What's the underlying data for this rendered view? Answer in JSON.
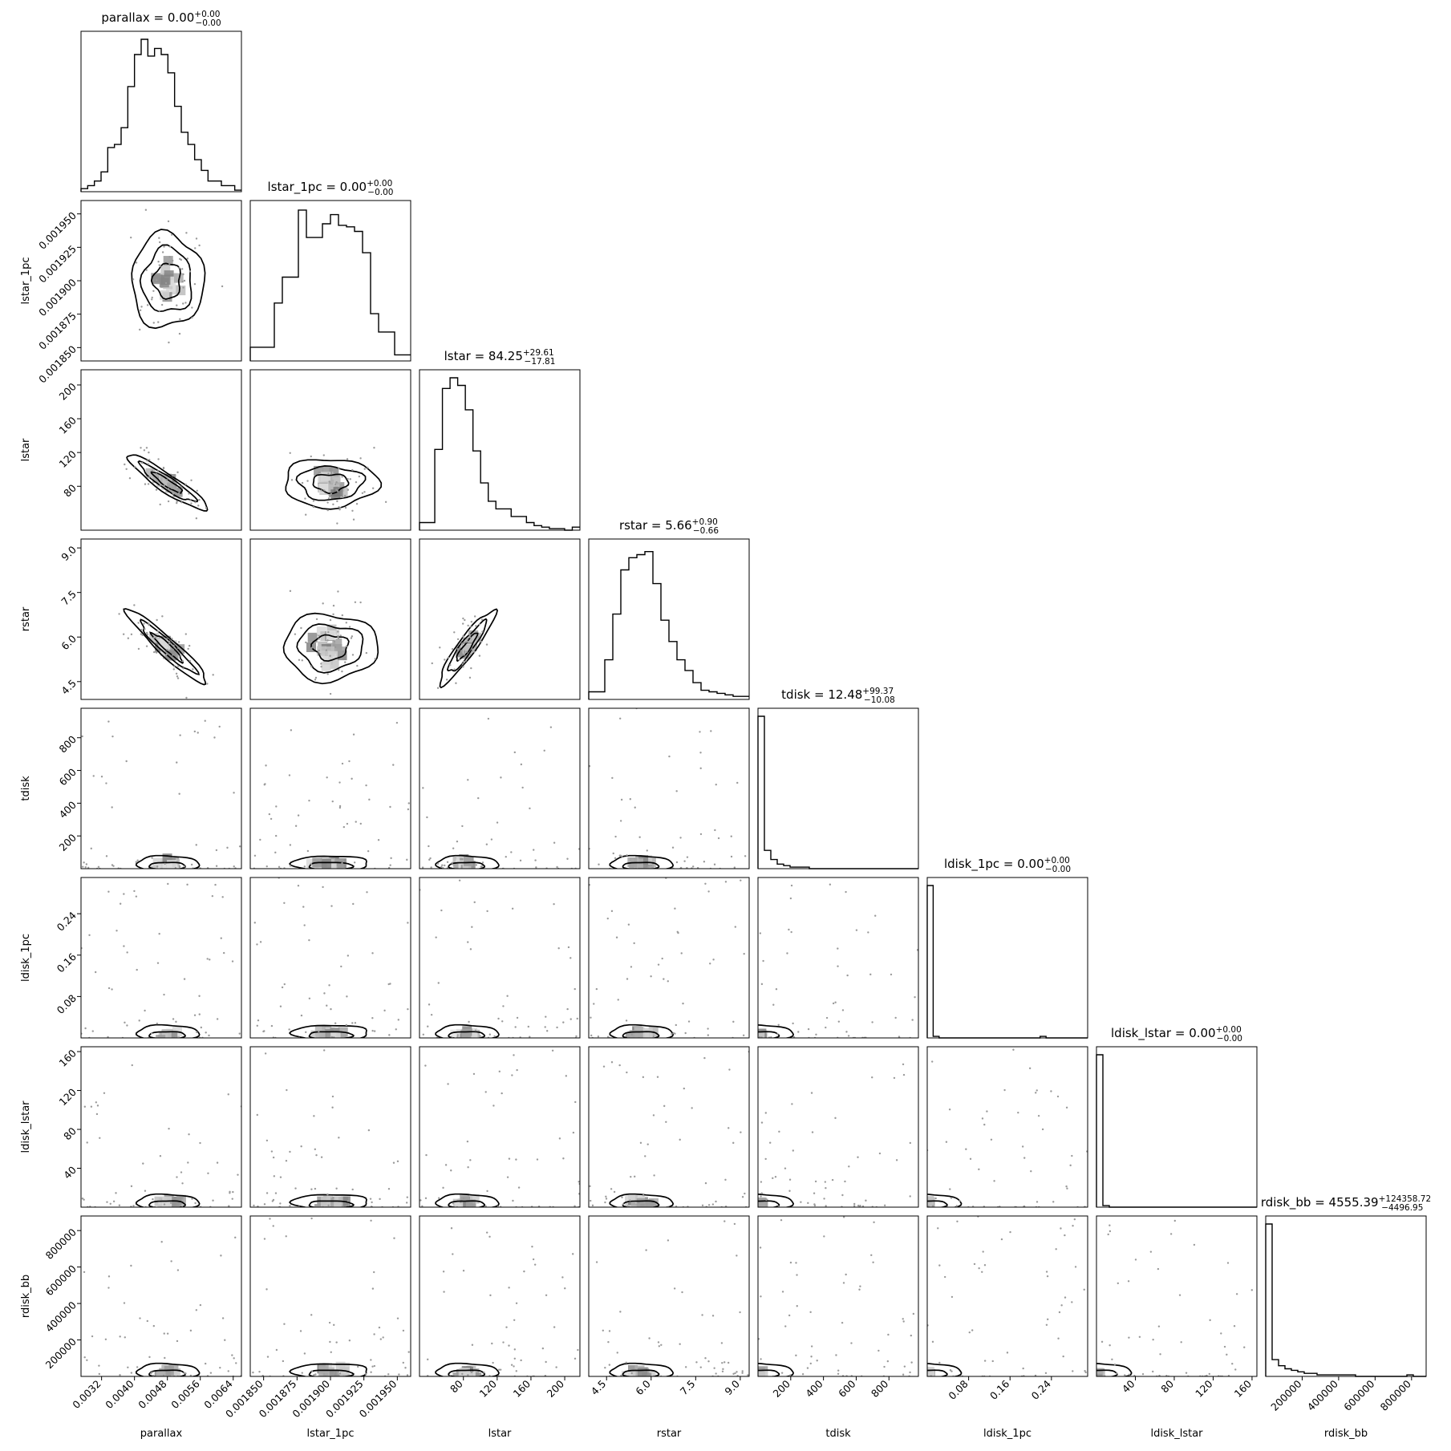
{
  "chart_data": {
    "type": "corner",
    "parameters": [
      "parallax",
      "lstar_1pc",
      "lstar",
      "rstar",
      "tdisk",
      "ldisk_1pc",
      "ldisk_lstar",
      "rdisk_bb"
    ],
    "axis_labels": [
      "parallax",
      "lstar_1pc",
      "lstar",
      "rstar",
      "tdisk",
      "ldisk_1pc",
      "ldisk_lstar",
      "rdisk_bb"
    ],
    "ranges": [
      [
        0.0027,
        0.0066
      ],
      [
        0.00184,
        0.00196
      ],
      [
        28,
        218
      ],
      [
        3.9,
        9.3
      ],
      [
        0,
        980
      ],
      [
        0,
        0.31
      ],
      [
        0,
        165
      ],
      [
        0,
        880000
      ]
    ],
    "ticks": [
      {
        "values": [
          0.0032,
          0.004,
          0.0048,
          0.0056,
          0.0064
        ],
        "labels": [
          "0.0032",
          "0.0040",
          "0.0048",
          "0.0056",
          "0.0064"
        ]
      },
      {
        "values": [
          0.00185,
          0.001875,
          0.0019,
          0.001925,
          0.00195
        ],
        "labels": [
          "0.001850",
          "0.001875",
          "0.001900",
          "0.001925",
          "0.001950"
        ]
      },
      {
        "values": [
          80,
          120,
          160,
          200
        ],
        "labels": [
          "80",
          "120",
          "160",
          "200"
        ]
      },
      {
        "values": [
          4.5,
          6.0,
          7.5,
          9.0
        ],
        "labels": [
          "4.5",
          "6.0",
          "7.5",
          "9.0"
        ]
      },
      {
        "values": [
          200,
          400,
          600,
          800
        ],
        "labels": [
          "200",
          "400",
          "600",
          "800"
        ]
      },
      {
        "values": [
          0.08,
          0.16,
          0.24
        ],
        "labels": [
          "0.08",
          "0.16",
          "0.24"
        ]
      },
      {
        "values": [
          40,
          80,
          120,
          160
        ],
        "labels": [
          "40",
          "80",
          "120",
          "160"
        ]
      },
      {
        "values": [
          200000,
          400000,
          600000,
          800000
        ],
        "labels": [
          "200000",
          "400000",
          "600000",
          "800000"
        ]
      }
    ],
    "titles": [
      {
        "name": "parallax",
        "median": "0.00",
        "plus": "+0.00",
        "minus": "−0.00"
      },
      {
        "name": "lstar_1pc",
        "median": "0.00",
        "plus": "+0.00",
        "minus": "−0.00"
      },
      {
        "name": "lstar",
        "median": "84.25",
        "plus": "+29.61",
        "minus": "−17.81"
      },
      {
        "name": "rstar",
        "median": "5.66",
        "plus": "+0.90",
        "minus": "−0.66"
      },
      {
        "name": "tdisk",
        "median": "12.48",
        "plus": "+99.37",
        "minus": "−10.08"
      },
      {
        "name": "ldisk_1pc",
        "median": "0.00",
        "plus": "+0.00",
        "minus": "−0.00"
      },
      {
        "name": "ldisk_lstar",
        "median": "0.00",
        "plus": "+0.00",
        "minus": "−0.00"
      },
      {
        "name": "rdisk_bb",
        "median": "4555.39",
        "plus": "+124358.72",
        "minus": "−4496.95"
      }
    ],
    "histograms": [
      [
        0.02,
        0.04,
        0.07,
        0.13,
        0.29,
        0.31,
        0.42,
        0.69,
        0.9,
        1.0,
        0.89,
        0.94,
        0.9,
        0.78,
        0.56,
        0.39,
        0.31,
        0.21,
        0.14,
        0.07,
        0.07,
        0.04,
        0.04,
        0.01
      ],
      [
        0.09,
        0.09,
        0.09,
        0.38,
        0.55,
        0.55,
        0.99,
        0.81,
        0.81,
        0.9,
        0.96,
        0.89,
        0.88,
        0.85,
        0.71,
        0.31,
        0.19,
        0.19,
        0.04,
        0.04
      ],
      [
        0.05,
        0.05,
        0.53,
        0.93,
        1.0,
        0.95,
        0.79,
        0.52,
        0.31,
        0.19,
        0.14,
        0.14,
        0.09,
        0.09,
        0.05,
        0.03,
        0.02,
        0.01,
        0.01,
        0.0,
        0.02
      ],
      [
        0.05,
        0.05,
        0.26,
        0.56,
        0.85,
        0.93,
        0.95,
        0.97,
        0.76,
        0.52,
        0.38,
        0.26,
        0.19,
        0.11,
        0.06,
        0.05,
        0.04,
        0.03,
        0.02,
        0.02
      ],
      [
        1.0,
        0.12,
        0.06,
        0.03,
        0.02,
        0.01,
        0.01,
        0.01,
        0.0,
        0.0,
        0.0,
        0.0,
        0.0,
        0.0,
        0.0,
        0.0,
        0.0,
        0.0,
        0.0,
        0.0,
        0.0,
        0.0,
        0.0,
        0.0,
        0.0
      ],
      [
        1.0,
        0.01,
        0.0,
        0.0,
        0.0,
        0.0,
        0.0,
        0.0,
        0.0,
        0.0,
        0.0,
        0.0,
        0.0,
        0.0,
        0.0,
        0.0,
        0.0,
        0.0,
        0.0,
        0.01,
        0.0,
        0.0,
        0.0,
        0.0,
        0.0,
        0.0,
        0.0
      ],
      [
        1.0,
        0.01,
        0.0,
        0.0,
        0.0,
        0.0,
        0.0,
        0.0,
        0.0,
        0.0,
        0.0,
        0.0,
        0.0,
        0.0,
        0.0,
        0.0,
        0.0,
        0.0,
        0.0,
        0.0,
        0.0,
        0.0,
        0.0,
        0.0,
        0.0
      ],
      [
        1.0,
        0.11,
        0.07,
        0.05,
        0.04,
        0.03,
        0.02,
        0.02,
        0.01,
        0.01,
        0.01,
        0.01,
        0.01,
        0.01,
        0.0,
        0.0,
        0.0,
        0.0,
        0.0,
        0.0,
        0.0,
        0.0,
        0.01,
        0.0,
        0.0
      ]
    ]
  }
}
